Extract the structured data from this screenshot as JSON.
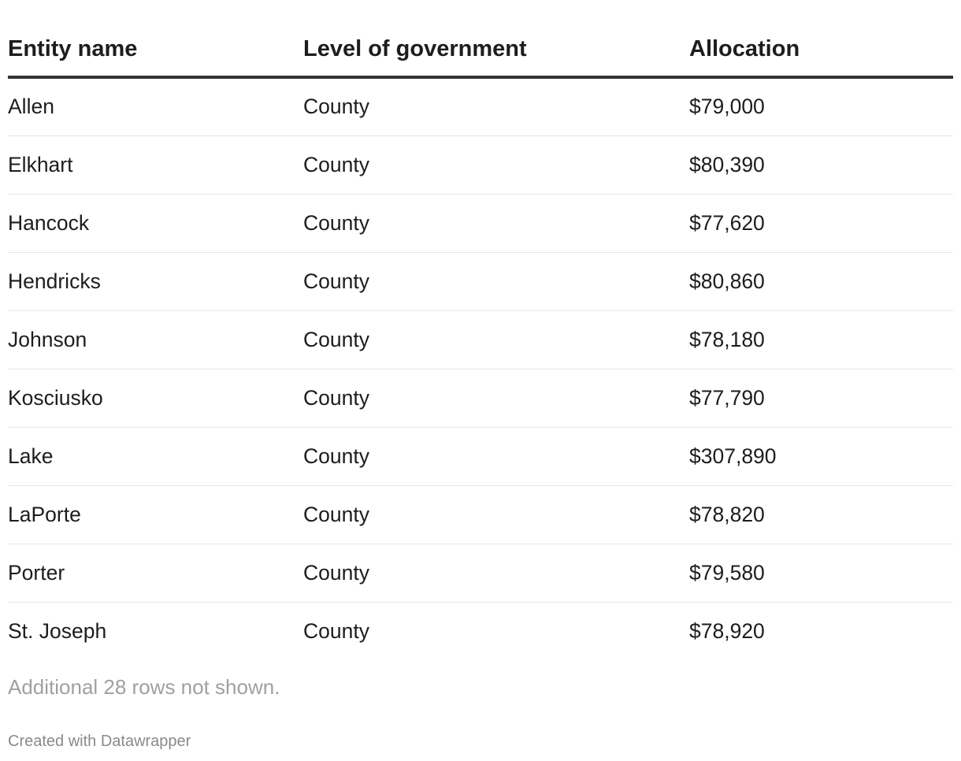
{
  "chart_data": {
    "type": "table",
    "columns": [
      "Entity name",
      "Level of government",
      "Allocation"
    ],
    "rows": [
      [
        "Allen",
        "County",
        "$79,000"
      ],
      [
        "Elkhart",
        "County",
        "$80,390"
      ],
      [
        "Hancock",
        "County",
        "$77,620"
      ],
      [
        "Hendricks",
        "County",
        "$80,860"
      ],
      [
        "Johnson",
        "County",
        "$78,180"
      ],
      [
        "Kosciusko",
        "County",
        "$77,790"
      ],
      [
        "Lake",
        "County",
        "$307,890"
      ],
      [
        "LaPorte",
        "County",
        "$78,820"
      ],
      [
        "Porter",
        "County",
        "$79,580"
      ],
      [
        "St. Joseph",
        "County",
        "$78,920"
      ]
    ],
    "note": "Additional 28 rows not shown."
  },
  "footer": {
    "credit": "Created with Datawrapper"
  },
  "colors": {
    "text": "#1d1d1d",
    "header_rule": "#333333",
    "row_rule": "#e6e6e6",
    "note_text": "#a0a0a0",
    "credit_text": "#8a8a8a"
  }
}
